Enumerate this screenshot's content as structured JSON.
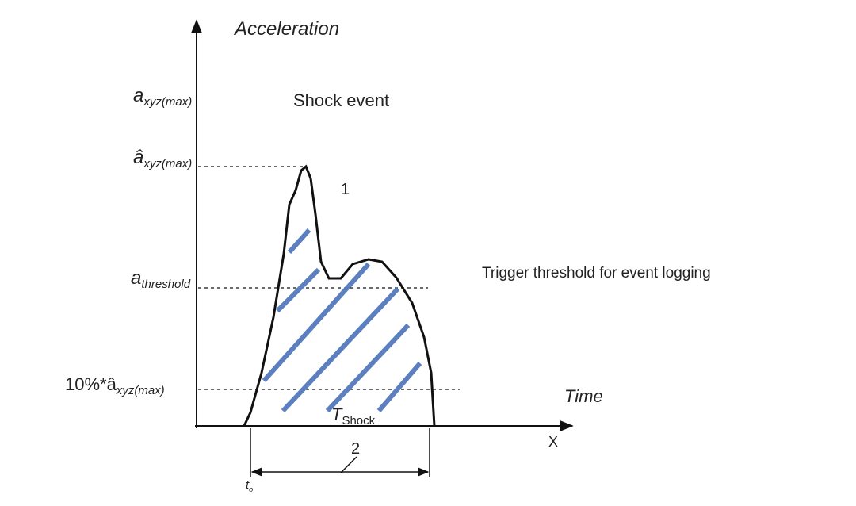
{
  "axes": {
    "y_label": "Acceleration",
    "x_label": "Time",
    "x_symbol": "X"
  },
  "levels": [
    {
      "symbol": "a",
      "subscript": "xyz(max)"
    },
    {
      "symbol": "â",
      "subscript": "xyz(max)"
    },
    {
      "symbol": "a",
      "subscript": "threshold"
    },
    {
      "symbol": "10%*â",
      "subscript": "xyz(max)"
    }
  ],
  "annotations": {
    "title": "Shock event",
    "curve_marker": "1",
    "threshold_note": "Trigger threshold for event logging",
    "duration_marker": "2",
    "start_time": {
      "symbol": "t",
      "subscript": "o"
    },
    "duration": {
      "symbol": "T",
      "subscript": "Shock"
    }
  }
}
